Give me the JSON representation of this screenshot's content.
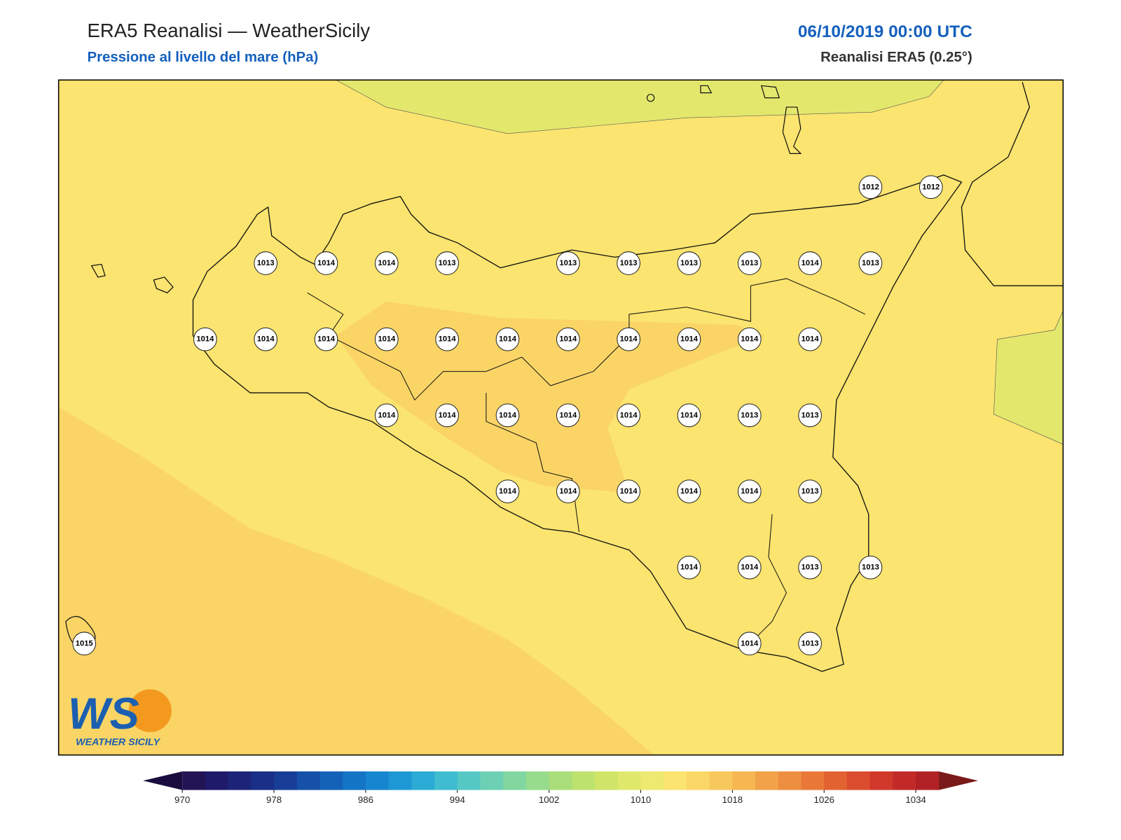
{
  "header": {
    "title": "ERA5 Reanalisi — WeatherSicily",
    "subtitle": "Pressione al livello del mare (hPa)",
    "datetime": "06/10/2019 00:00 UTC",
    "source": "Reanalisi ERA5 (0.25°)"
  },
  "map": {
    "stations": [
      1012,
      1012,
      1013,
      1014,
      1014,
      1013,
      1013,
      1013,
      1013,
      1013,
      1014,
      1013,
      1014,
      1014,
      1014,
      1014,
      1014,
      1014,
      1014,
      1014,
      1014,
      1014,
      1014,
      1014,
      1014,
      1014,
      1014,
      1014,
      1014,
      1013,
      1013,
      1014,
      1014,
      1014,
      1014,
      1014,
      1013,
      1014,
      1014,
      1013,
      1013,
      1014,
      1013,
      1015
    ]
  },
  "colorbar": {
    "xlim": [
      970,
      1036
    ],
    "xticks": [
      970,
      978,
      986,
      994,
      1002,
      1010,
      1018,
      1026,
      1034
    ],
    "colors": [
      "#231455",
      "#1f1a6a",
      "#1c2478",
      "#1a2f87",
      "#183d96",
      "#1650a8",
      "#1462b8",
      "#1474c6",
      "#1786d0",
      "#1e98d4",
      "#2aaad4",
      "#3fbcd0",
      "#55c8c4",
      "#6dd0b4",
      "#82d6a0",
      "#96dc8c",
      "#aade7a",
      "#bee26e",
      "#d0e468",
      "#e0e86c",
      "#eee970",
      "#fbe46f",
      "#fbd767",
      "#f8c85c",
      "#f6b652",
      "#f2a248",
      "#ee8e40",
      "#e97838",
      "#e36232",
      "#db4c2e",
      "#d0382a",
      "#c22a28",
      "#b02226"
    ],
    "under_color": "#1a0d3e",
    "over_color": "#7a1a1a"
  },
  "logo": {
    "letters": "WS",
    "text": "WEATHER SICILY"
  }
}
